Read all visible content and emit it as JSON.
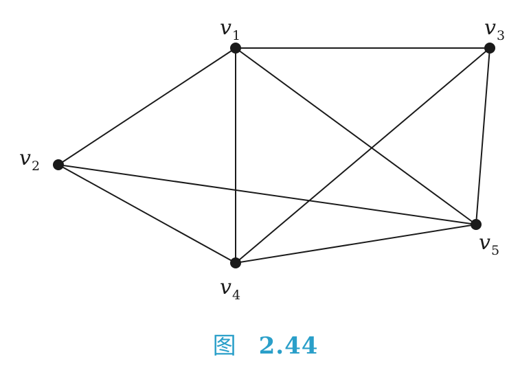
{
  "figure": {
    "caption_prefix": "图",
    "caption_number": "2.44"
  },
  "graph": {
    "vertices": [
      {
        "id": "v1",
        "label": "v",
        "sub": "1"
      },
      {
        "id": "v2",
        "label": "v",
        "sub": "2"
      },
      {
        "id": "v3",
        "label": "v",
        "sub": "3"
      },
      {
        "id": "v4",
        "label": "v",
        "sub": "4"
      },
      {
        "id": "v5",
        "label": "v",
        "sub": "5"
      }
    ],
    "edges": [
      [
        "v1",
        "v3"
      ],
      [
        "v1",
        "v2"
      ],
      [
        "v1",
        "v4"
      ],
      [
        "v1",
        "v5"
      ],
      [
        "v2",
        "v4"
      ],
      [
        "v2",
        "v5"
      ],
      [
        "v3",
        "v4"
      ],
      [
        "v3",
        "v5"
      ],
      [
        "v4",
        "v5"
      ]
    ]
  }
}
